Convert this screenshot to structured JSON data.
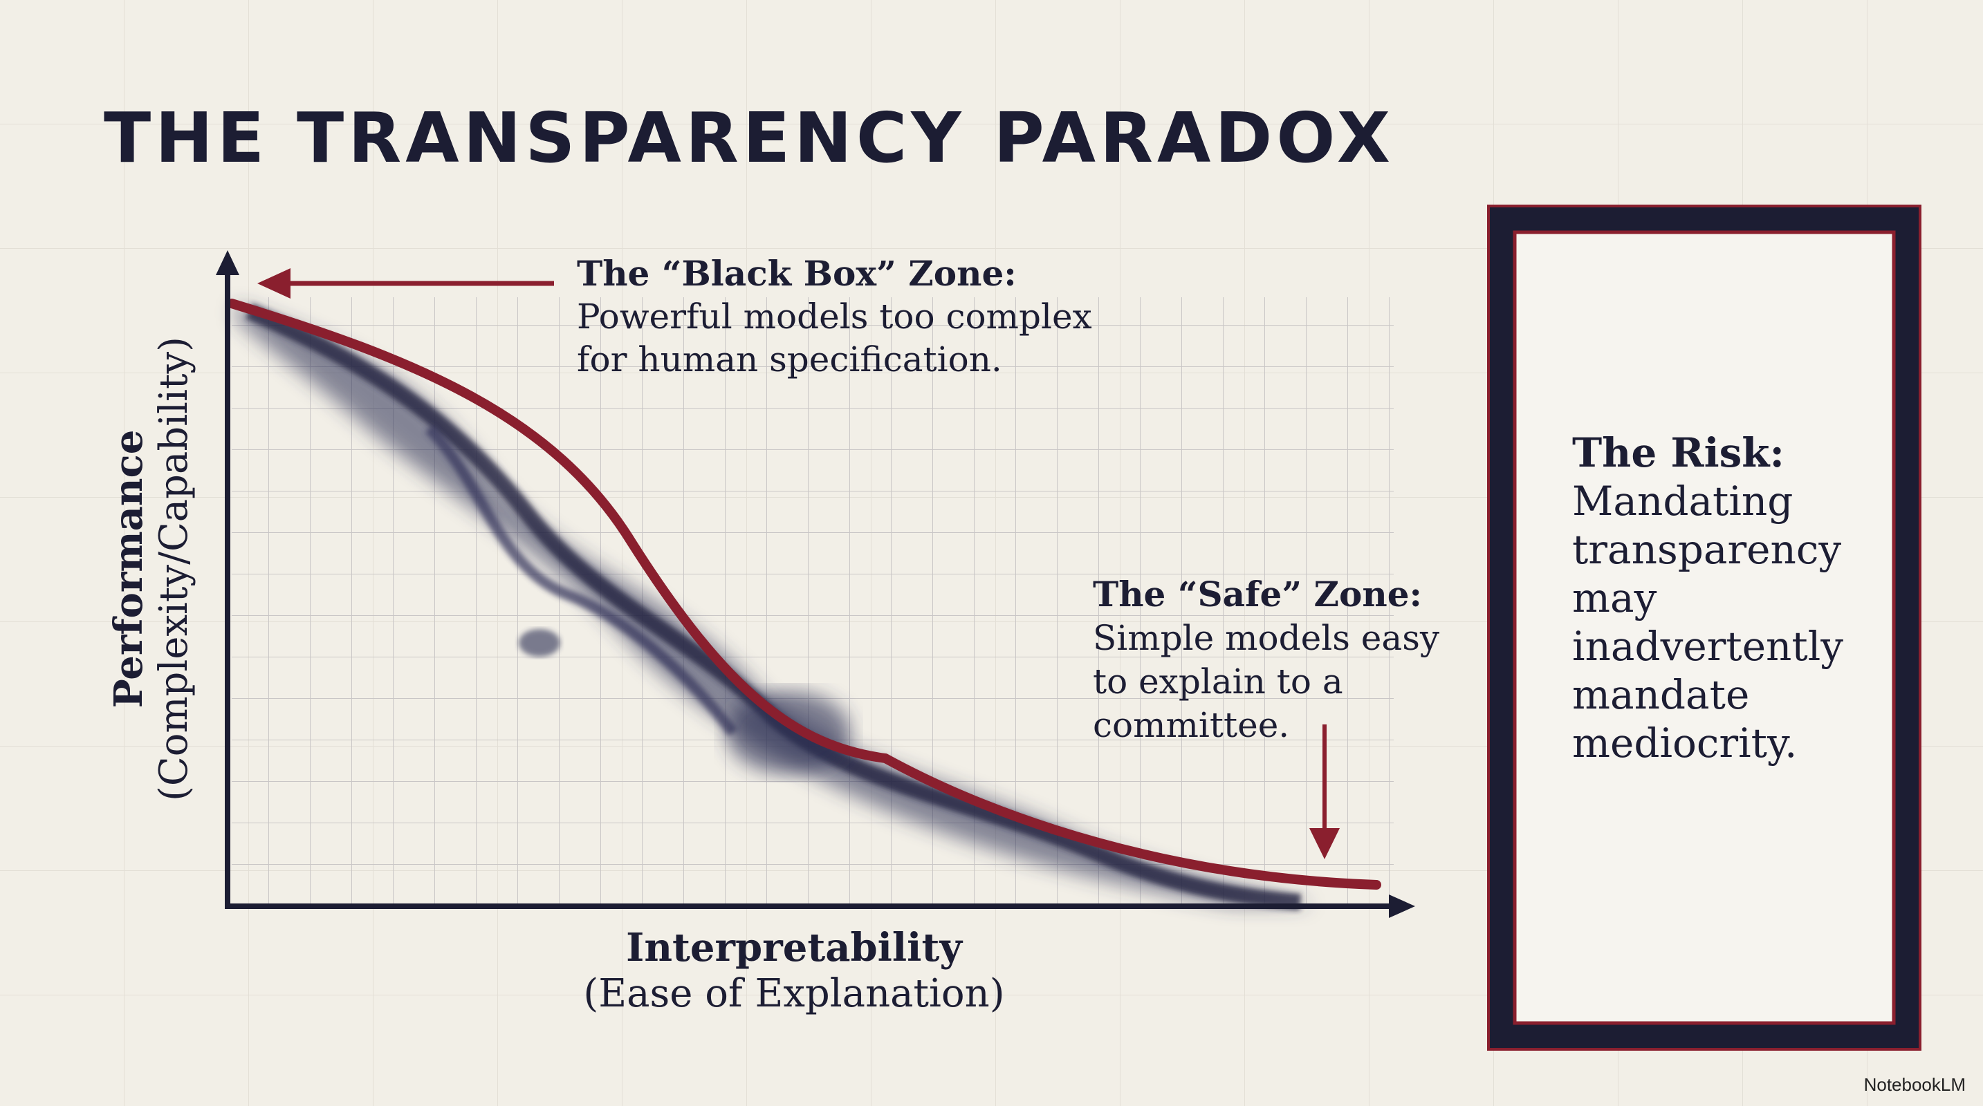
{
  "title": "THE TRANSPARENCY PARADOX",
  "diagram": {
    "y_axis_label": "Performance",
    "y_axis_sublabel": "(Complexity/Capability)",
    "x_axis_label": "Interpretability",
    "x_axis_sublabel": "(Ease of Explanation)",
    "annotations": [
      {
        "heading": "The “Black Box” Zone:",
        "lines": [
          "Powerful models too complex",
          "for human specification."
        ]
      },
      {
        "heading": "The “Safe” Zone:",
        "lines": [
          "Simple models easy",
          "to explain to a",
          "committee."
        ]
      }
    ]
  },
  "risk_box": {
    "heading": "The Risk:",
    "lines": [
      "Mandating",
      "transparency",
      "may",
      "inadvertently",
      "mandate",
      "mediocrity."
    ]
  },
  "watermark": "NotebookLM"
}
